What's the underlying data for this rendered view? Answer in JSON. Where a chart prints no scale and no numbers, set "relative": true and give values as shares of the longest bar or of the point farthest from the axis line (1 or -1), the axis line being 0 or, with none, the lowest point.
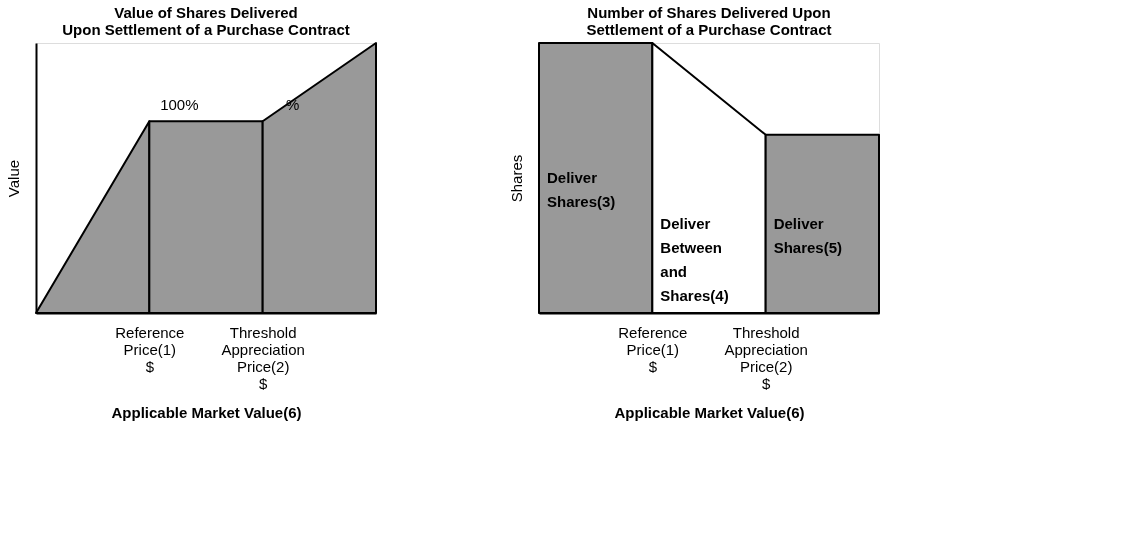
{
  "chart_data": [
    {
      "type": "area",
      "relative": true,
      "title": "Value of Shares Delivered\nUpon Settlement of a Purchase Contract",
      "xlabel": "Applicable Market Value(6)",
      "ylabel": "Value",
      "grid": false,
      "categories": [
        null,
        "Reference Price(1) $",
        "Threshold Appreciation Price(2) $",
        null
      ],
      "series": [
        {
          "color": "#999999",
          "values": [
            0,
            0.71,
            null,
            null
          ]
        },
        {
          "color": "#999999",
          "values": [
            null,
            0.71,
            0.71,
            null
          ]
        },
        {
          "color": "#999999",
          "values": [
            null,
            null,
            0.71,
            1
          ]
        }
      ],
      "annotations": [
        "100%",
        "%"
      ]
    },
    {
      "type": "area",
      "relative": true,
      "title": "Number of Shares Delivered Upon\nSettlement of a Purchase Contract",
      "xlabel": "Applicable Market Value(6)",
      "ylabel": "Shares",
      "grid": false,
      "categories": [
        null,
        "Reference Price(1) $",
        "Threshold Appreciation Price(2) $",
        null
      ],
      "series": [
        {
          "color": "#999999",
          "values": [
            1,
            1,
            null,
            null
          ]
        },
        {
          "color": "#ffffff",
          "values": [
            null,
            1,
            0.66,
            null
          ]
        },
        {
          "color": "#999999",
          "values": [
            null,
            null,
            0.66,
            0.66
          ]
        }
      ],
      "annotations": [
        "Deliver Shares(3)",
        "Deliver Between and Shares(4)",
        "Deliver Shares(5)"
      ]
    }
  ]
}
